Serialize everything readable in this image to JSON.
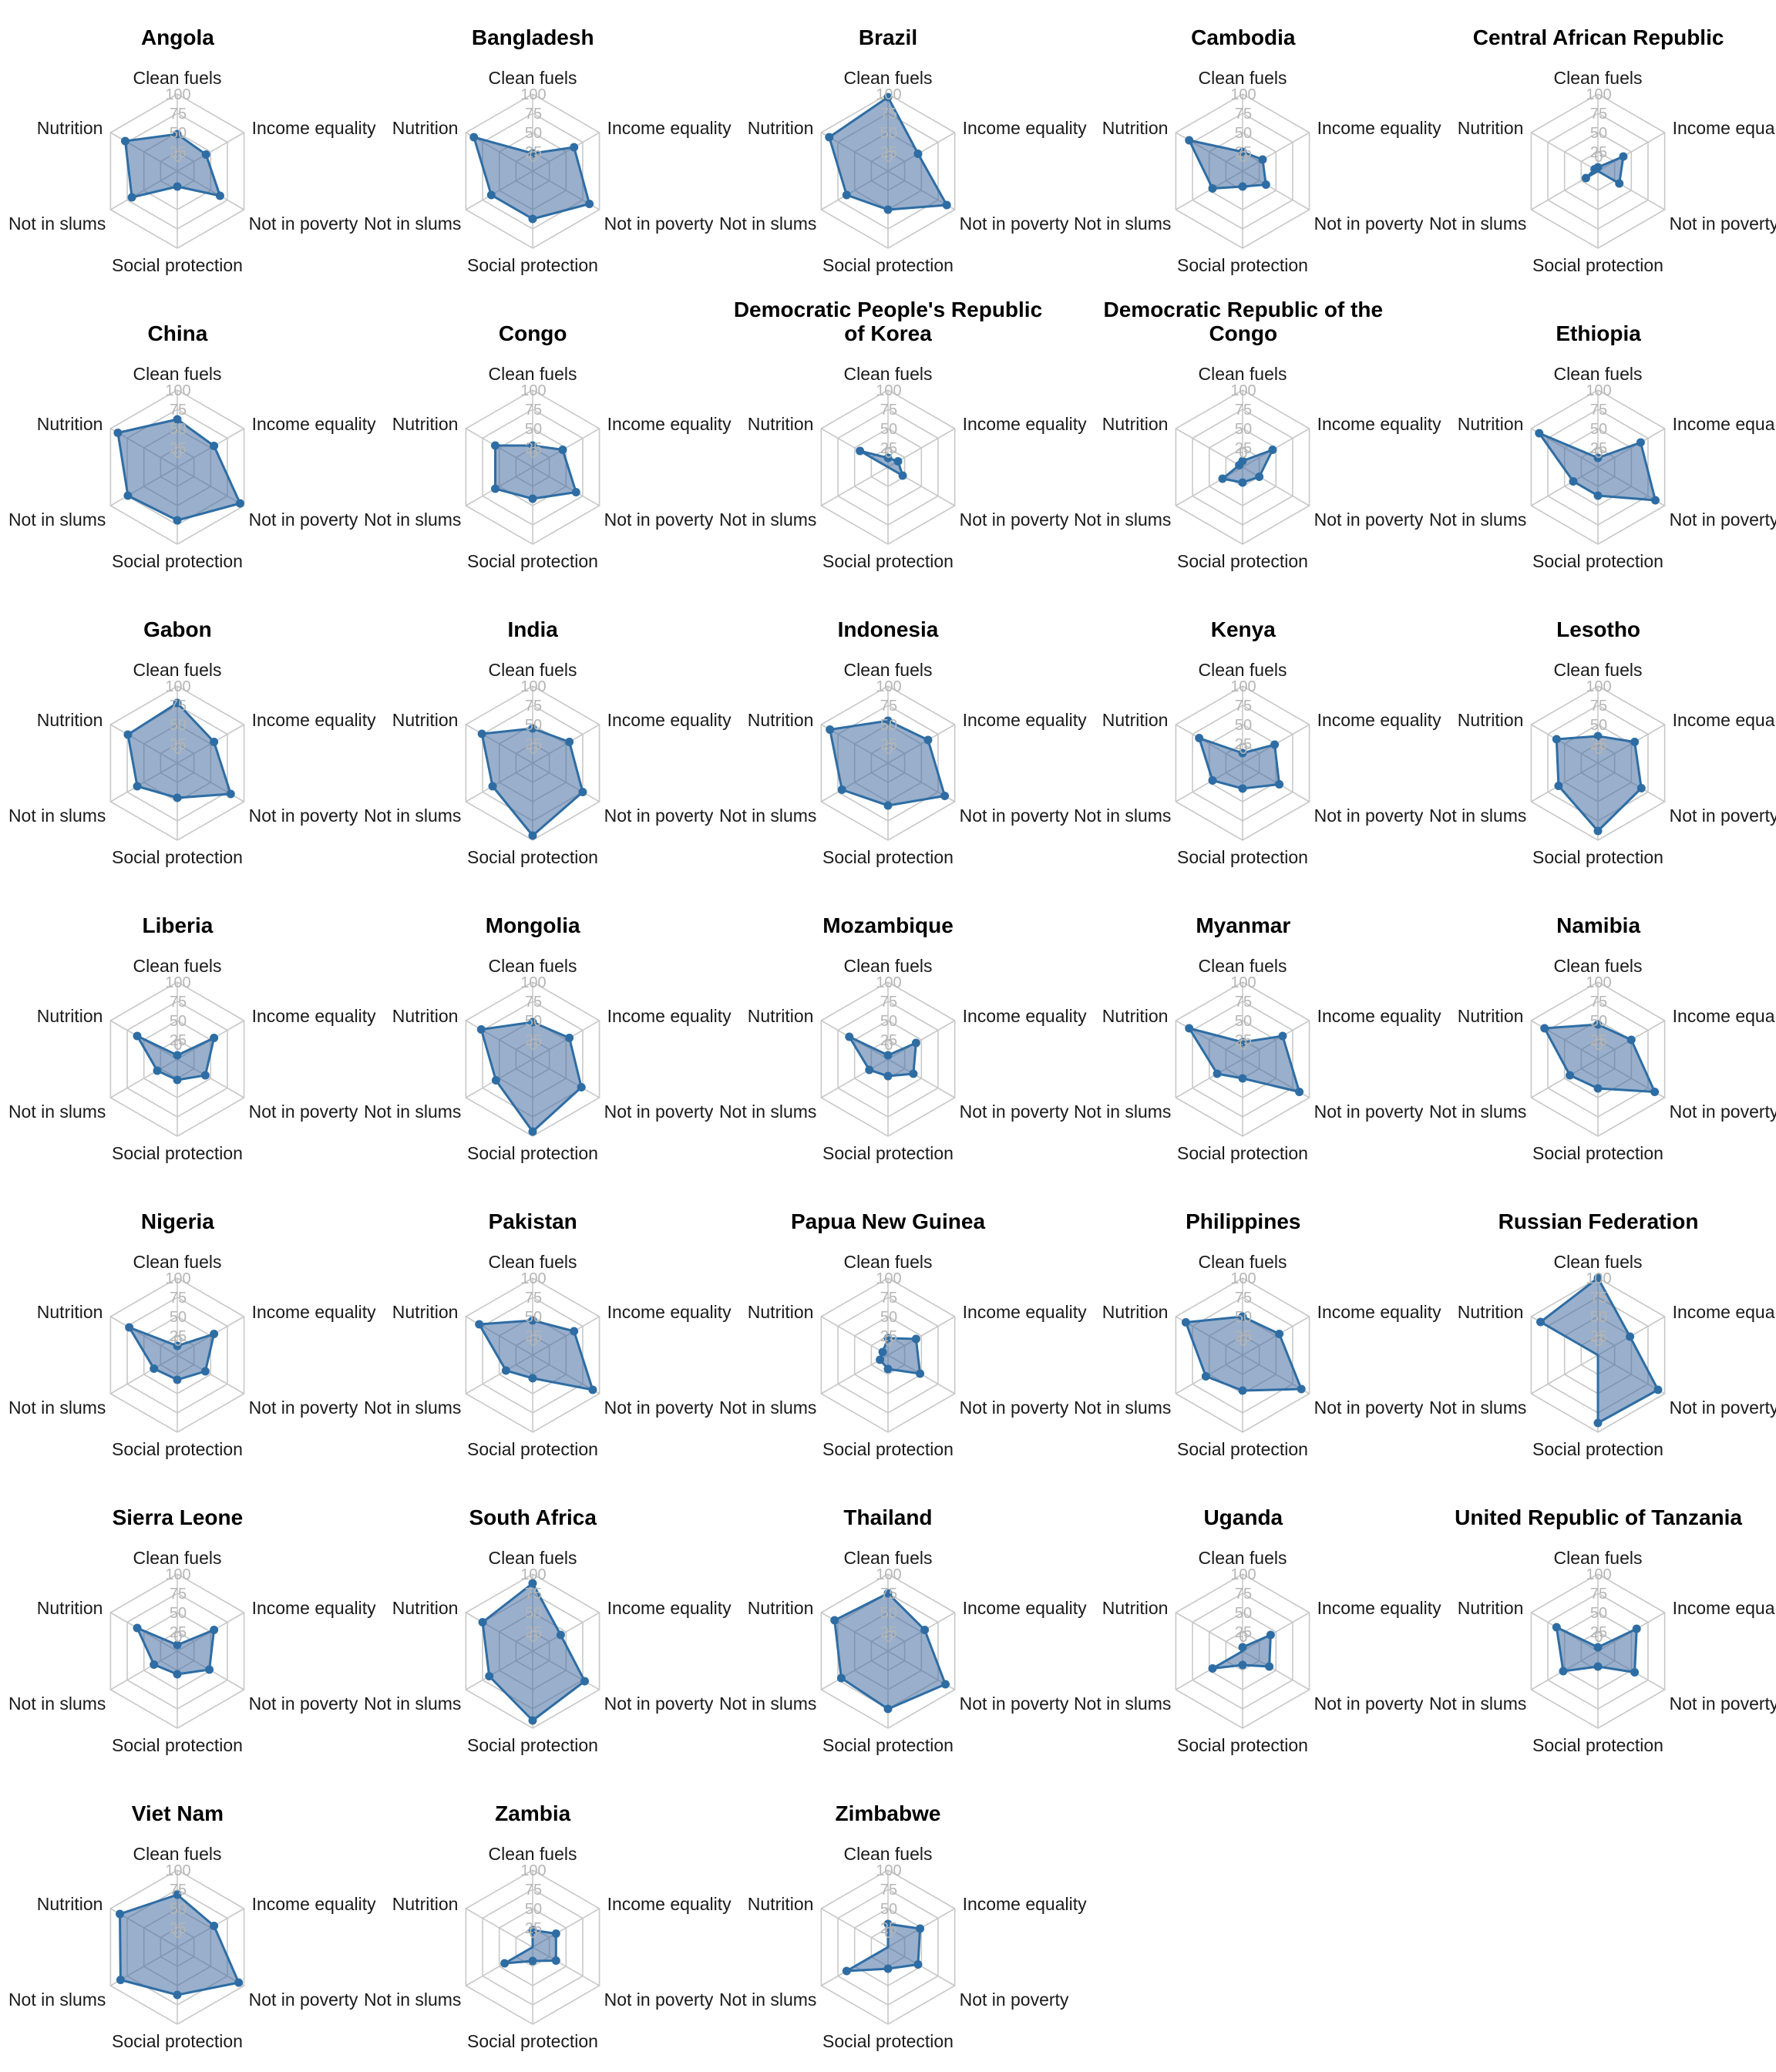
{
  "chart_data": {
    "type": "radar",
    "layout": {
      "columns": 5,
      "rows": 7,
      "grid": true,
      "legend": false
    },
    "axes": [
      "Clean fuels",
      "Income equality",
      "Not in poverty",
      "Social protection",
      "Not in slums",
      "Nutrition"
    ],
    "ticks": [
      0,
      25,
      50,
      75,
      100
    ],
    "range": [
      0,
      100
    ],
    "colors": {
      "fill": "rgba(70, 110, 160, 0.55)",
      "line": "#2e6da4",
      "point": "#2e6da4",
      "grid": "#c8c8c8",
      "tick_label": "#b5b5b5",
      "axis_label": "#1a1a1a",
      "title": "#000000",
      "background": "#ffffff"
    },
    "series": [
      {
        "name": "Angola",
        "values": [
          48,
          43,
          64,
          20,
          68,
          78
        ]
      },
      {
        "name": "Bangladesh",
        "values": [
          23,
          62,
          85,
          62,
          62,
          88
        ]
      },
      {
        "name": "Brazil",
        "values": [
          96,
          45,
          88,
          50,
          62,
          88
        ]
      },
      {
        "name": "Cambodia",
        "values": [
          25,
          30,
          35,
          20,
          45,
          80
        ]
      },
      {
        "name": "Central African Republic",
        "values": [
          5,
          38,
          32,
          0,
          18,
          5
        ]
      },
      {
        "name": "China",
        "values": [
          62,
          55,
          94,
          69,
          74,
          89
        ]
      },
      {
        "name": "Congo",
        "values": [
          28,
          45,
          65,
          41,
          56,
          56
        ]
      },
      {
        "name": "Democratic People's Republic of Korea",
        "values": [
          12,
          15,
          22,
          0,
          0,
          42
        ]
      },
      {
        "name": "Democratic Republic of the Congo",
        "values": [
          8,
          45,
          25,
          20,
          30,
          5
        ]
      },
      {
        "name": "Ethiopia",
        "values": [
          12,
          64,
          86,
          37,
          37,
          88
        ]
      },
      {
        "name": "Gabon",
        "values": [
          78,
          55,
          80,
          45,
          60,
          74
        ]
      },
      {
        "name": "India",
        "values": [
          45,
          55,
          75,
          94,
          60,
          76
        ]
      },
      {
        "name": "Indonesia",
        "values": [
          55,
          60,
          85,
          55,
          69,
          87
        ]
      },
      {
        "name": "Kenya",
        "values": [
          13,
          48,
          55,
          33,
          45,
          65
        ]
      },
      {
        "name": "Lesotho",
        "values": [
          35,
          55,
          65,
          88,
          59,
          62
        ]
      },
      {
        "name": "Liberia",
        "values": [
          5,
          55,
          42,
          27,
          30,
          60
        ]
      },
      {
        "name": "Mongolia",
        "values": [
          48,
          55,
          73,
          94,
          55,
          77
        ]
      },
      {
        "name": "Mozambique",
        "values": [
          5,
          42,
          38,
          22,
          28,
          58
        ]
      },
      {
        "name": "Myanmar",
        "values": [
          22,
          60,
          85,
          25,
          38,
          80
        ]
      },
      {
        "name": "Namibia",
        "values": [
          45,
          50,
          85,
          38,
          42,
          80
        ]
      },
      {
        "name": "Nigeria",
        "values": [
          12,
          55,
          42,
          32,
          35,
          72
        ]
      },
      {
        "name": "Pakistan",
        "values": [
          45,
          62,
          90,
          30,
          40,
          80
        ]
      },
      {
        "name": "Papua New Guinea",
        "values": [
          22,
          42,
          48,
          18,
          12,
          8
        ]
      },
      {
        "name": "Philippines",
        "values": [
          50,
          55,
          88,
          46,
          55,
          85
        ]
      },
      {
        "name": "Russian Federation",
        "values": [
          100,
          48,
          90,
          88,
          0,
          86
        ]
      },
      {
        "name": "Sierra Leone",
        "values": [
          8,
          55,
          48,
          30,
          35,
          60
        ]
      },
      {
        "name": "South Africa",
        "values": [
          88,
          42,
          78,
          90,
          65,
          75
        ]
      },
      {
        "name": "Thailand",
        "values": [
          75,
          55,
          86,
          75,
          70,
          80
        ]
      },
      {
        "name": "Uganda",
        "values": [
          5,
          42,
          40,
          18,
          45,
          0
        ]
      },
      {
        "name": "United Republic of Tanzania",
        "values": [
          5,
          58,
          55,
          20,
          52,
          62
        ]
      },
      {
        "name": "Viet Nam",
        "values": [
          68,
          55,
          92,
          62,
          85,
          86
        ]
      },
      {
        "name": "Zambia",
        "values": [
          22,
          35,
          35,
          18,
          42,
          0
        ]
      },
      {
        "name": "Zimbabwe",
        "values": [
          30,
          48,
          45,
          28,
          62,
          0
        ]
      }
    ]
  }
}
